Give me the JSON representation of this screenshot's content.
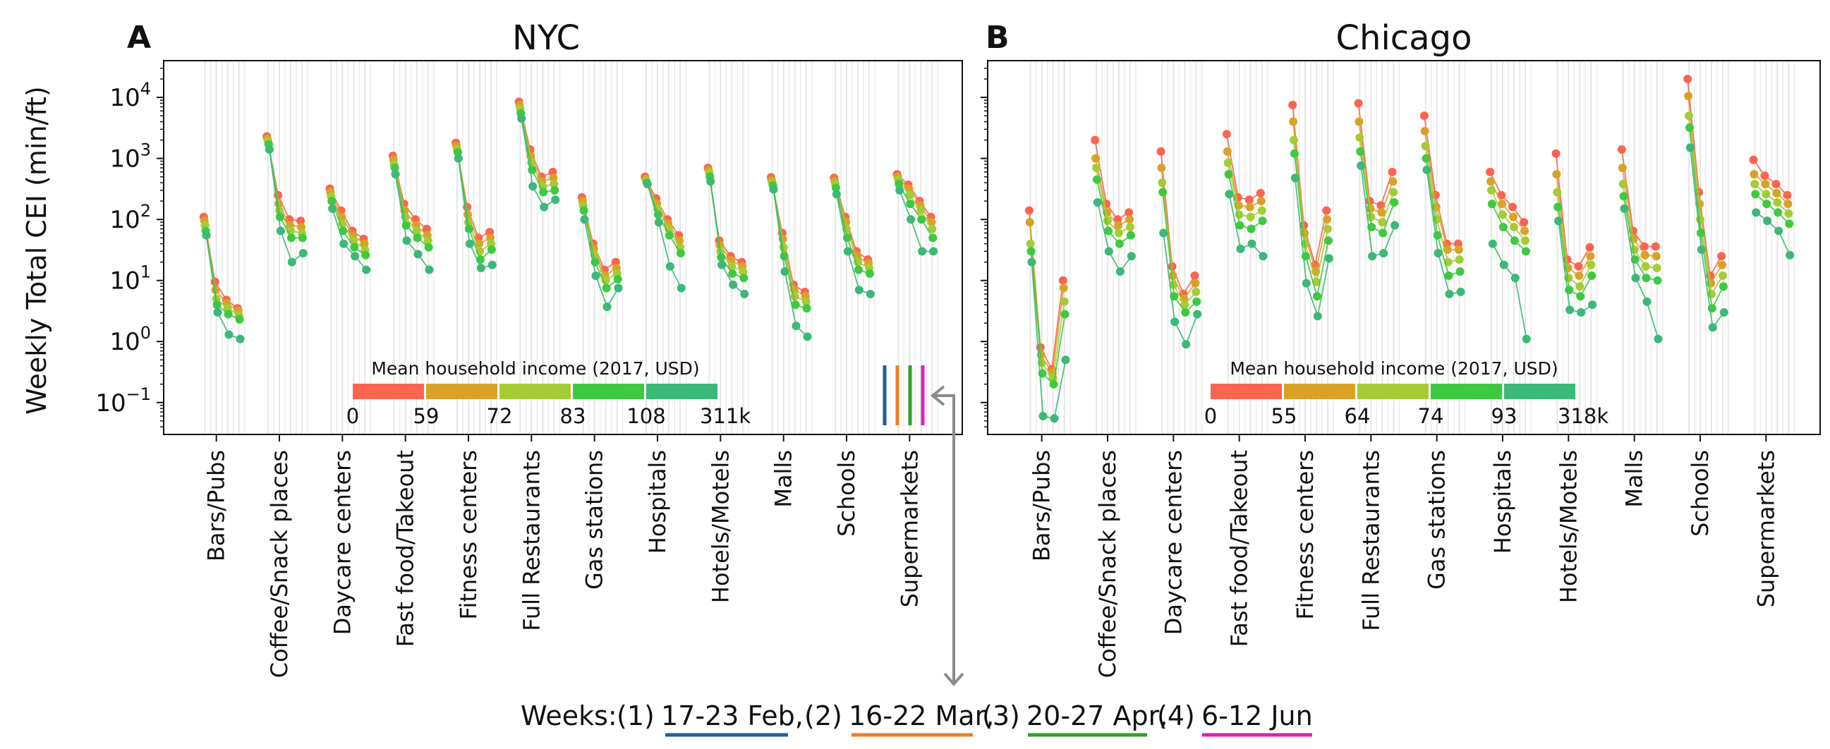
{
  "figure": {
    "ylabel": "Weekly Total CEI (min/ft)",
    "weeks_prefix": "Weeks:",
    "weeks": [
      {
        "num": "(1)",
        "label": "17-23 Feb,",
        "color": "#1f5f99"
      },
      {
        "num": "(2)",
        "label": "16-22 Mar,",
        "color": "#f07f22"
      },
      {
        "num": "(3)",
        "label": "20-27 Apr,",
        "color": "#33a02c"
      },
      {
        "num": "(4)",
        "label": "6-12 Jun",
        "color": "#e01fb8"
      }
    ],
    "income_colors": [
      "#fa6450",
      "#d9a227",
      "#a5cc35",
      "#3fc940",
      "#3cb878"
    ]
  },
  "chart_data": [
    {
      "panel": "A",
      "type": "scatter",
      "title": "NYC",
      "ylabel": "Weekly Total CEI (min/ft)",
      "yscale": "log",
      "ylim": [
        0.03,
        40000
      ],
      "yticks": [
        {
          "value": 10000,
          "base": "10",
          "exp": "4"
        },
        {
          "value": 1000,
          "base": "10",
          "exp": "3"
        },
        {
          "value": 100,
          "base": "10",
          "exp": "2"
        },
        {
          "value": 10,
          "base": "10",
          "exp": "1"
        },
        {
          "value": 1,
          "base": "10",
          "exp": "0"
        },
        {
          "value": 0.1,
          "base": "10",
          "exp": "−1"
        }
      ],
      "categories": [
        "Bars/Pubs",
        "Coffee/Snack places",
        "Daycare centers",
        "Fast food/Takeout",
        "Fitness centers",
        "Full Restaurants",
        "Gas stations",
        "Hospitals",
        "Hotels/Motels",
        "Malls",
        "Schools",
        "Supermarkets"
      ],
      "weeks": [
        "17-23 Feb",
        "16-22 Mar",
        "20-27 Apr",
        "6-12 Jun"
      ],
      "income_legend": {
        "title": "Mean household income (2017, USD)",
        "ticks": [
          "0",
          "59",
          "72",
          "83",
          "108",
          "311k"
        ]
      },
      "series": [
        {
          "name": "0-59",
          "values": [
            [
              110,
              9.5,
              4.8,
              3.5
            ],
            [
              2300,
              250,
              100,
              95
            ],
            [
              320,
              140,
              65,
              48
            ],
            [
              1100,
              180,
              100,
              70
            ],
            [
              1800,
              160,
              50,
              62
            ],
            [
              8500,
              1400,
              500,
              600
            ],
            [
              230,
              40,
              15,
              20
            ],
            [
              500,
              220,
              100,
              55
            ],
            [
              700,
              45,
              25,
              20
            ],
            [
              490,
              60,
              8.5,
              6.5
            ],
            [
              480,
              110,
              30,
              22
            ],
            [
              550,
              370,
              200,
              110
            ]
          ]
        },
        {
          "name": "59-72",
          "values": [
            [
              95,
              7,
              4.2,
              3.2
            ],
            [
              2100,
              180,
              80,
              75
            ],
            [
              280,
              110,
              55,
              40
            ],
            [
              950,
              140,
              80,
              55
            ],
            [
              1600,
              120,
              40,
              50
            ],
            [
              7500,
              1100,
              420,
              480
            ],
            [
              200,
              33,
              12,
              16
            ],
            [
              460,
              180,
              85,
              45
            ],
            [
              640,
              38,
              21,
              17
            ],
            [
              440,
              48,
              7,
              5.5
            ],
            [
              430,
              90,
              25,
              19
            ],
            [
              500,
              320,
              170,
              90
            ]
          ]
        },
        {
          "name": "72-83",
          "values": [
            [
              80,
              5,
              3.5,
              2.7
            ],
            [
              1900,
              140,
              65,
              60
            ],
            [
              240,
              85,
              45,
              32
            ],
            [
              800,
              110,
              65,
              45
            ],
            [
              1400,
              90,
              30,
              40
            ],
            [
              6500,
              850,
              350,
              380
            ],
            [
              170,
              26,
              10,
              13
            ],
            [
              430,
              150,
              70,
              35
            ],
            [
              580,
              30,
              17,
              14
            ],
            [
              400,
              35,
              5.5,
              4.5
            ],
            [
              380,
              70,
              20,
              16
            ],
            [
              450,
              250,
              140,
              70
            ]
          ]
        },
        {
          "name": "83-108",
          "values": [
            [
              65,
              4,
              2.8,
              2.3
            ],
            [
              1700,
              110,
              50,
              50
            ],
            [
              200,
              65,
              35,
              26
            ],
            [
              700,
              80,
              50,
              35
            ],
            [
              1250,
              70,
              22,
              32
            ],
            [
              5500,
              650,
              280,
              300
            ],
            [
              140,
              20,
              7.5,
              10.5
            ],
            [
              400,
              120,
              55,
              28
            ],
            [
              500,
              24,
              13,
              11
            ],
            [
              360,
              25,
              4,
              3.5
            ],
            [
              330,
              50,
              15,
              13
            ],
            [
              380,
              180,
              100,
              50
            ]
          ]
        },
        {
          "name": "108-311k",
          "values": [
            [
              55,
              3,
              1.3,
              1.1
            ],
            [
              1400,
              65,
              20,
              28
            ],
            [
              150,
              40,
              25,
              15
            ],
            [
              550,
              45,
              27,
              15
            ],
            [
              1000,
              40,
              16,
              18
            ],
            [
              4500,
              350,
              160,
              210
            ],
            [
              100,
              12,
              3.7,
              7.5
            ],
            [
              380,
              90,
              17,
              7.5
            ],
            [
              420,
              18,
              8.5,
              6
            ],
            [
              310,
              14,
              1.8,
              1.2
            ],
            [
              260,
              30,
              7,
              6
            ],
            [
              300,
              100,
              30,
              30
            ]
          ]
        }
      ]
    },
    {
      "panel": "B",
      "type": "scatter",
      "title": "Chicago",
      "yscale": "log",
      "ylim": [
        0.03,
        40000
      ],
      "categories": [
        "Bars/Pubs",
        "Coffee/Snack places",
        "Daycare centers",
        "Fast food/Takeout",
        "Fitness centers",
        "Full Restaurants",
        "Gas stations",
        "Hospitals",
        "Hotels/Motels",
        "Malls",
        "Schools",
        "Supermarkets"
      ],
      "weeks": [
        "17-23 Feb",
        "16-22 Mar",
        "20-27 Apr",
        "6-12 Jun"
      ],
      "income_legend": {
        "title": "Mean household income (2017, USD)",
        "ticks": [
          "0",
          "55",
          "64",
          "74",
          "93",
          "318k"
        ]
      },
      "series": [
        {
          "name": "0-55",
          "values": [
            [
              140,
              0.8,
              0.35,
              10
            ],
            [
              2000,
              180,
              100,
              130
            ],
            [
              1300,
              17,
              6,
              12
            ],
            [
              2500,
              230,
              210,
              270
            ],
            [
              7500,
              80,
              18,
              140
            ],
            [
              8000,
              200,
              170,
              600
            ],
            [
              5000,
              250,
              40,
              40
            ],
            [
              600,
              250,
              160,
              90
            ],
            [
              1200,
              22,
              17,
              35
            ],
            [
              1400,
              65,
              36,
              36
            ],
            [
              20000,
              280,
              12,
              25
            ],
            [
              950,
              520,
              380,
              250
            ]
          ]
        },
        {
          "name": "55-64",
          "values": [
            [
              90,
              0.6,
              0.3,
              7.5
            ],
            [
              1000,
              130,
              80,
              100
            ],
            [
              700,
              12,
              5,
              9
            ],
            [
              1300,
              170,
              160,
              200
            ],
            [
              4000,
              60,
              14,
              100
            ],
            [
              4000,
              150,
              130,
              420
            ],
            [
              2800,
              160,
              32,
              32
            ],
            [
              420,
              180,
              110,
              65
            ],
            [
              550,
              16,
              12,
              25
            ],
            [
              700,
              48,
              26,
              25
            ],
            [
              10500,
              180,
              9,
              18
            ],
            [
              550,
              380,
              270,
              180
            ]
          ]
        },
        {
          "name": "64-74",
          "values": [
            [
              40,
              0.45,
              0.25,
              4.5
            ],
            [
              700,
              95,
              60,
              75
            ],
            [
              400,
              8.5,
              4,
              6.5
            ],
            [
              850,
              120,
              110,
              140
            ],
            [
              2000,
              40,
              9.5,
              70
            ],
            [
              2200,
              110,
              90,
              280
            ],
            [
              1600,
              100,
              20,
              22
            ],
            [
              300,
              120,
              75,
              45
            ],
            [
              280,
              11,
              8,
              18
            ],
            [
              380,
              32,
              17,
              16
            ],
            [
              5000,
              100,
              6,
              12
            ],
            [
              380,
              260,
              190,
              125
            ]
          ]
        },
        {
          "name": "74-93",
          "values": [
            [
              30,
              0.3,
              0.2,
              2.8
            ],
            [
              450,
              65,
              40,
              55
            ],
            [
              280,
              5.5,
              3,
              4.5
            ],
            [
              550,
              80,
              70,
              95
            ],
            [
              1200,
              25,
              5.5,
              45
            ],
            [
              1300,
              75,
              60,
              190
            ],
            [
              1000,
              55,
              12,
              14
            ],
            [
              180,
              75,
              45,
              30
            ],
            [
              160,
              7,
              5.5,
              12
            ],
            [
              240,
              22,
              11,
              10
            ],
            [
              3200,
              60,
              3.5,
              8
            ],
            [
              260,
              180,
              130,
              85
            ]
          ]
        },
        {
          "name": "93-318k",
          "values": [
            [
              20,
              0.06,
              0.055,
              0.5
            ],
            [
              190,
              30,
              14,
              25
            ],
            [
              60,
              2.1,
              0.9,
              2.8
            ],
            [
              260,
              33,
              40,
              25
            ],
            [
              480,
              9,
              2.6,
              23
            ],
            [
              760,
              25,
              28,
              80
            ],
            [
              650,
              28,
              6,
              6.5
            ],
            [
              40,
              18,
              11,
              1.1
            ],
            [
              95,
              3.3,
              3,
              4
            ],
            [
              150,
              11,
              4.5,
              1.1
            ],
            [
              1500,
              32,
              1.7,
              3
            ],
            [
              130,
              95,
              65,
              26
            ]
          ]
        }
      ]
    }
  ]
}
